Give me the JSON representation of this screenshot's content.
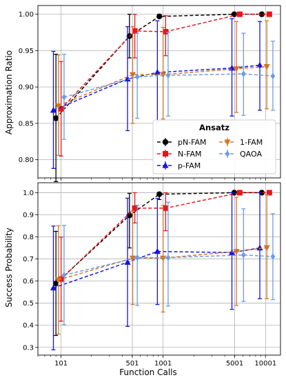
{
  "figure": {
    "shared_xlabel": "Function Calls"
  },
  "chart_data": [
    {
      "type": "line",
      "panel": "top",
      "ylabel": "Approximation Ratio",
      "xscale": "log",
      "xlim": [
        60,
        14000
      ],
      "ylim": [
        0.775,
        1.012
      ],
      "yticks": [
        0.8,
        0.85,
        0.9,
        0.95,
        1.0
      ],
      "ytick_labels": [
        "0.80",
        "0.85",
        "0.90",
        "0.95",
        "1.00"
      ],
      "xticks": [
        101,
        501,
        1001,
        5001,
        10001
      ],
      "xtick_labels": [
        "",
        "",
        "",
        "",
        ""
      ],
      "grid": true,
      "legend": {
        "title": "Ansatz",
        "placement": "lower-right",
        "columns": 2
      },
      "series": [
        {
          "name": "pN-FAM",
          "color": "#000000",
          "marker": "circle",
          "x": [
            90,
            470,
            920,
            4950,
            9200
          ],
          "y": [
            0.857,
            0.97,
            0.997,
            1.0,
            1.0
          ],
          "err_low": [
            0.087,
            0.03,
            0.0,
            0.0,
            0.0
          ],
          "err_high": [
            0.088,
            0.03,
            0.003,
            0.0,
            0.0
          ]
        },
        {
          "name": "N-FAM",
          "color": "#e8141a",
          "marker": "square",
          "x": [
            101,
            530,
            1060,
            5600,
            10900
          ],
          "y": [
            0.87,
            0.977,
            0.976,
            1.0,
            1.0
          ],
          "err_low": [
            0.065,
            0.037,
            0.033,
            0.0,
            0.0
          ],
          "err_high": [
            0.065,
            0.023,
            0.022,
            0.0,
            0.0
          ]
        },
        {
          "name": "p-FAM",
          "color": "#1414e0",
          "marker": "triangle-up",
          "x": [
            85,
            450,
            880,
            4700,
            8800
          ],
          "y": [
            0.868,
            0.911,
            0.92,
            0.926,
            0.93
          ],
          "err_low": [
            0.08,
            0.071,
            0.068,
            0.066,
            0.062
          ],
          "err_high": [
            0.081,
            0.072,
            0.071,
            0.068,
            0.06
          ]
        },
        {
          "name": "1-FAM",
          "color": "#d2752a",
          "marker": "triangle-down",
          "x": [
            95,
            505,
            1000,
            5200,
            10300
          ],
          "y": [
            0.874,
            0.917,
            0.917,
            0.925,
            0.928
          ],
          "err_low": [
            0.068,
            0.067,
            0.061,
            0.06,
            0.058
          ],
          "err_high": [
            0.07,
            0.066,
            0.065,
            0.065,
            0.063
          ]
        },
        {
          "name": "QAOA",
          "color": "#6b9be8",
          "marker": "diamond",
          "x": [
            108,
            560,
            1120,
            6100,
            11800
          ],
          "y": [
            0.886,
            0.914,
            0.916,
            0.918,
            0.915
          ],
          "err_low": [
            0.058,
            0.057,
            0.056,
            0.057,
            0.047
          ],
          "err_high": [
            0.059,
            0.06,
            0.059,
            0.056,
            0.048
          ]
        }
      ]
    },
    {
      "type": "line",
      "panel": "bottom",
      "ylabel": "Success Probability",
      "xlabel": "Function Calls",
      "xscale": "log",
      "xlim": [
        60,
        14000
      ],
      "ylim": [
        0.265,
        1.045
      ],
      "yticks": [
        0.3,
        0.4,
        0.5,
        0.6,
        0.7,
        0.8,
        0.9,
        1.0
      ],
      "ytick_labels": [
        "0.3",
        "0.4",
        "0.5",
        "0.6",
        "0.7",
        "0.8",
        "0.9",
        "1.0"
      ],
      "xticks": [
        101,
        501,
        1001,
        5001,
        10001
      ],
      "xtick_labels": [
        "101",
        "501",
        "1001",
        "5001",
        "10001"
      ],
      "grid": true,
      "series": [
        {
          "name": "pN-FAM",
          "color": "#000000",
          "marker": "circle",
          "x": [
            90,
            470,
            920,
            4950,
            9200
          ],
          "y": [
            0.589,
            0.897,
            0.993,
            1.0,
            1.0
          ],
          "err_low": [
            0.235,
            0.147,
            0.024,
            0.0,
            0.0
          ],
          "err_high": [
            0.236,
            0.1,
            0.007,
            0.0,
            0.0
          ]
        },
        {
          "name": "N-FAM",
          "color": "#e8141a",
          "marker": "square",
          "x": [
            101,
            530,
            1060,
            5600,
            10900
          ],
          "y": [
            0.609,
            0.93,
            0.93,
            1.0,
            1.0
          ],
          "err_low": [
            0.19,
            0.067,
            0.102,
            0.0,
            0.0
          ],
          "err_high": [
            0.19,
            0.07,
            0.07,
            0.0,
            0.0
          ]
        },
        {
          "name": "p-FAM",
          "color": "#1414e0",
          "marker": "triangle-up",
          "x": [
            85,
            450,
            880,
            4700,
            8800
          ],
          "y": [
            0.569,
            0.685,
            0.734,
            0.729,
            0.75
          ],
          "err_low": [
            0.28,
            0.29,
            0.24,
            0.257,
            0.23
          ],
          "err_high": [
            0.28,
            0.29,
            0.24,
            0.271,
            0.25
          ]
        },
        {
          "name": "1-FAM",
          "color": "#d2752a",
          "marker": "triangle-down",
          "x": [
            95,
            505,
            1000,
            5200,
            10300
          ],
          "y": [
            0.605,
            0.704,
            0.704,
            0.734,
            0.751
          ],
          "err_low": [
            0.245,
            0.21,
            0.244,
            0.244,
            0.231
          ],
          "err_high": [
            0.245,
            0.213,
            0.239,
            0.245,
            0.24
          ]
        },
        {
          "name": "QAOA",
          "color": "#6b9be8",
          "marker": "diamond",
          "x": [
            108,
            560,
            1120,
            6100,
            11800
          ],
          "y": [
            0.627,
            0.706,
            0.706,
            0.718,
            0.711
          ],
          "err_low": [
            0.225,
            0.216,
            0.219,
            0.21,
            0.195
          ],
          "err_high": [
            0.225,
            0.237,
            0.251,
            0.209,
            0.194
          ]
        }
      ]
    }
  ]
}
